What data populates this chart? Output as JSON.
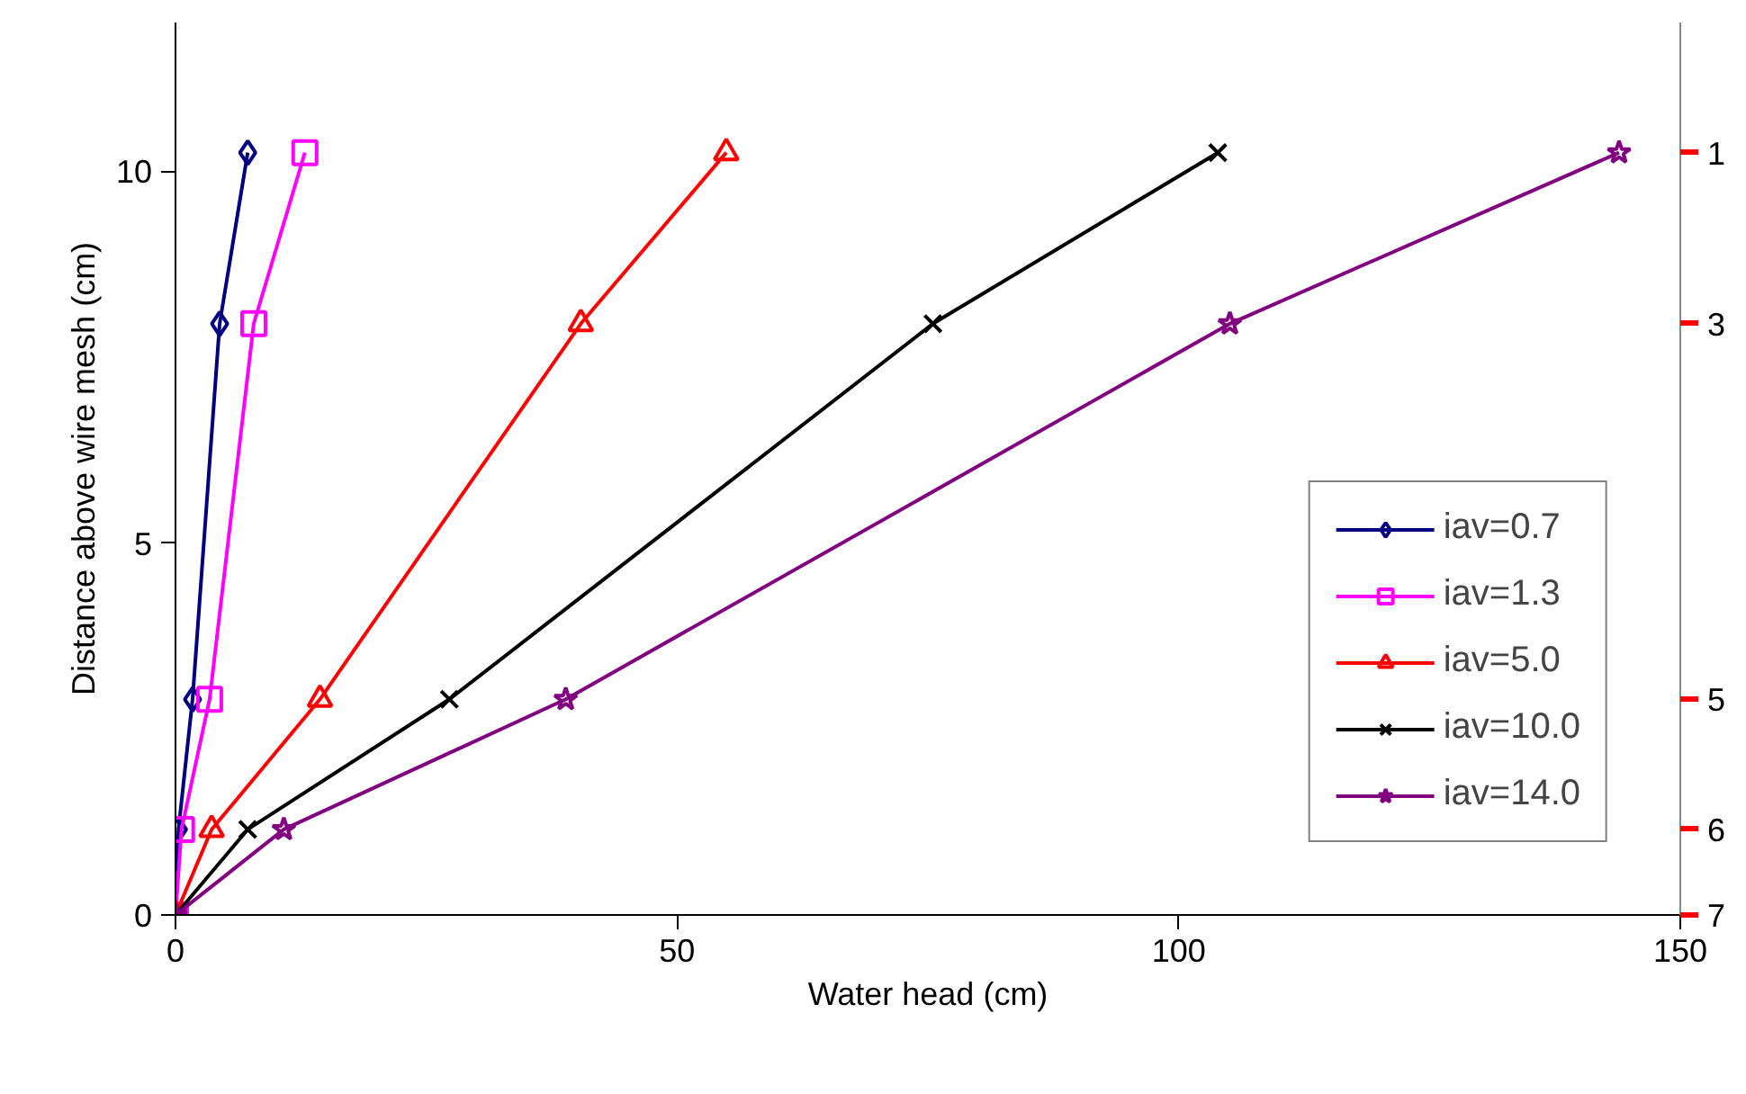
{
  "chart_data": {
    "type": "line",
    "xlabel": "Water head (cm)",
    "ylabel": "Distance above wire mesh (cm)",
    "xlim": [
      0,
      150
    ],
    "xticks": [
      0,
      50,
      100,
      150
    ],
    "ylim": [
      0,
      12
    ],
    "yticks": [
      0,
      5,
      10
    ],
    "annotations": [
      "1",
      "3",
      "5",
      "6",
      "7"
    ],
    "grid": false,
    "legend": "bottom right",
    "line_style": "solid",
    "series": [
      {
        "name": "iav=0.7",
        "color": "#000080",
        "marker": "diamond",
        "x": [
          0,
          0.3,
          1.7,
          4.4,
          7.2
        ],
        "values": [
          0,
          1.15,
          2.9,
          7.95,
          10.25
        ]
      },
      {
        "name": "iav=1.3",
        "color": "#ff00ff",
        "marker": "square",
        "x": [
          0,
          0.6,
          3.4,
          7.8,
          12.9
        ],
        "values": [
          0,
          1.15,
          2.9,
          7.95,
          10.25
        ]
      },
      {
        "name": "iav=5.0",
        "color": "#ff0000",
        "marker": "triangle",
        "x": [
          0,
          3.6,
          14.4,
          40.4,
          54.9
        ],
        "values": [
          0,
          1.15,
          2.9,
          7.95,
          10.25
        ]
      },
      {
        "name": "iav=10.0",
        "color": "#000000",
        "marker": "cross",
        "x": [
          0,
          7.2,
          27.3,
          75.5,
          103.9
        ],
        "values": [
          0,
          1.15,
          2.9,
          7.95,
          10.25
        ]
      },
      {
        "name": "iav=14.0",
        "color": "#800080",
        "marker": "star",
        "x": [
          0,
          10.8,
          38.9,
          105.1,
          143.9
        ],
        "values": [
          0,
          1.15,
          2.9,
          7.95,
          10.25
        ]
      }
    ]
  }
}
